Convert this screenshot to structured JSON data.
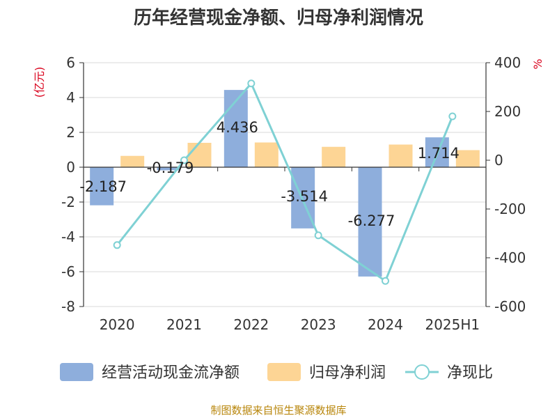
{
  "chart_data": {
    "type": "bar",
    "title": "历年经营现金净额、归母净利润情况",
    "categories": [
      "2020",
      "2021",
      "2022",
      "2023",
      "2024",
      "2025H1"
    ],
    "y_left": {
      "unit": "(亿元)",
      "ylim": [
        -8,
        6
      ],
      "ticks": [
        "6",
        "4",
        "2",
        "0",
        "-2",
        "-4",
        "-6",
        "-8"
      ]
    },
    "y_right": {
      "unit": "%",
      "ylim": [
        -600,
        400
      ],
      "ticks": [
        "400",
        "200",
        "0",
        "-200",
        "-400",
        "-600"
      ]
    },
    "series": [
      {
        "name": "经营活动现金流净额",
        "type": "bar",
        "axis": "left",
        "color": "#8eaedc",
        "values": [
          -2.187,
          -0.179,
          4.436,
          -3.514,
          -6.277,
          1.714
        ]
      },
      {
        "name": "归母净利润",
        "type": "bar",
        "axis": "left",
        "color": "#fdd595",
        "values": [
          0.65,
          1.4,
          1.42,
          1.17,
          1.3,
          0.98
        ]
      },
      {
        "name": "净现比",
        "type": "line",
        "axis": "right",
        "color": "#7fd1d4",
        "values": [
          -348,
          0,
          315,
          -308,
          -495,
          180
        ]
      }
    ],
    "data_labels": [
      "-2.187",
      "-0.179",
      "4.436",
      "-3.514",
      "-6.277",
      "1.714"
    ],
    "grid": true,
    "legend_position": "bottom"
  },
  "footer": {
    "source": "制图数据来自恒生聚源数据库"
  }
}
